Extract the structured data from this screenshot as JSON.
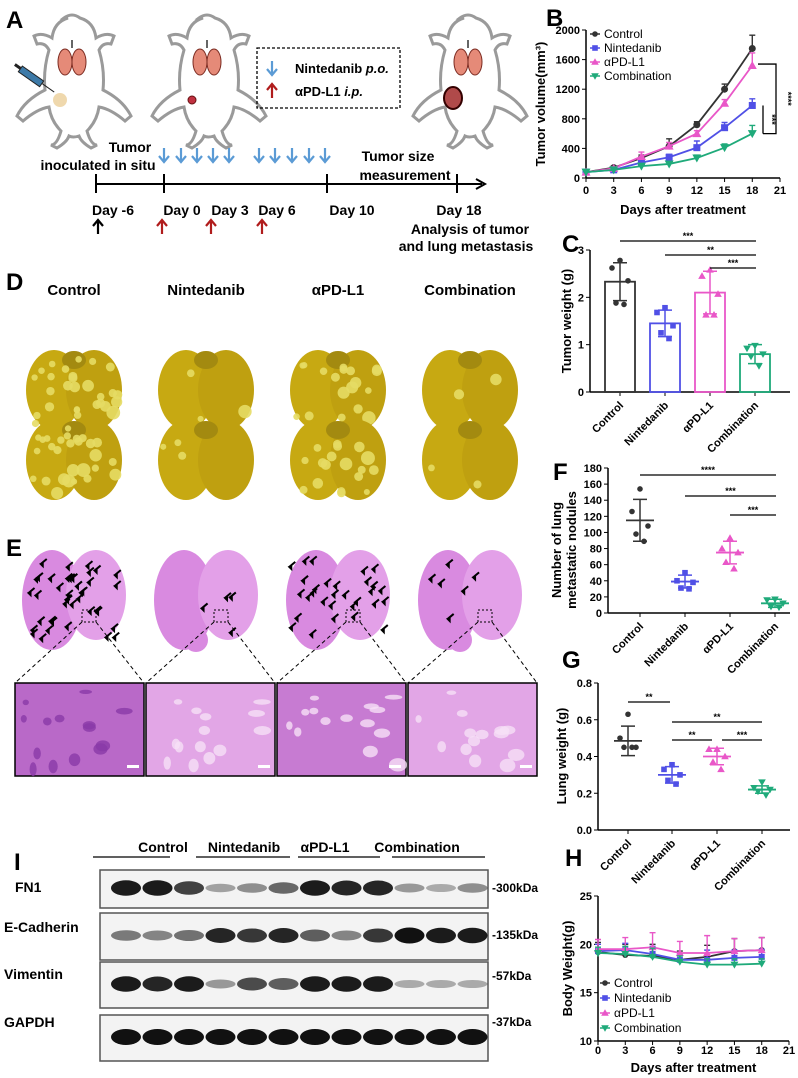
{
  "panel_labels": {
    "A": "A",
    "B": "B",
    "C": "C",
    "D": "D",
    "E": "E",
    "F": "F",
    "G": "G",
    "H": "H",
    "I": "I"
  },
  "groups": [
    "Control",
    "Nintedanib",
    "αPD-L1",
    "Combination"
  ],
  "colors": {
    "Control": "#333333",
    "Nintedanib": "#5050e6",
    "αPD-L1": "#e957c8",
    "Combination": "#1faa7a",
    "blue_arrow": "#5b9bd5",
    "red_arrow": "#b01c1c"
  },
  "schematic": {
    "legend": {
      "nintedanib": "Nintedanib",
      "nintedanib_route": "p.o.",
      "apdl1": "αPD-L1",
      "apdl1_route": "i.p."
    },
    "inoculation_line1": "Tumor",
    "inoculation_line2": "inoculated in situ",
    "measurement_line1": "Tumor size",
    "measurement_line2": "measurement",
    "days": [
      "Day -6",
      "Day 0",
      "Day 3",
      "Day 6",
      "Day 10",
      "Day 18"
    ],
    "analysis_line1": "Analysis of tumor",
    "analysis_line2": "and lung metastasis"
  },
  "photos": {
    "labels": [
      "Control",
      "Nintedanib",
      "αPD-L1",
      "Combination"
    ]
  },
  "western": {
    "groups": [
      "Control",
      "Nintedanib",
      "αPD-L1",
      "Combination"
    ],
    "rows": [
      {
        "protein": "FN1",
        "size": "-300kDa"
      },
      {
        "protein": "E-Cadherin",
        "size": "-135kDa"
      },
      {
        "protein": "Vimentin",
        "size": "-57kDa"
      },
      {
        "protein": "GAPDH",
        "size": "-37kDa"
      }
    ]
  },
  "chart_data": [
    {
      "id": "B",
      "type": "line",
      "xlabel": "Days after treatment",
      "ylabel": "Tumor volume(mm³)",
      "xlim": [
        0,
        21
      ],
      "ylim": [
        0,
        2000
      ],
      "xticks": [
        0,
        3,
        6,
        9,
        12,
        15,
        18,
        21
      ],
      "yticks": [
        0,
        400,
        800,
        1200,
        1600,
        2000
      ],
      "x": [
        0,
        3,
        6,
        9,
        12,
        15,
        18
      ],
      "legend": "top-left",
      "series": [
        {
          "name": "Control",
          "values": [
            80,
            140,
            270,
            430,
            720,
            1200,
            1750
          ],
          "err": [
            20,
            20,
            40,
            100,
            40,
            70,
            180
          ],
          "marker": "circle"
        },
        {
          "name": "Nintedanib",
          "values": [
            80,
            110,
            210,
            280,
            410,
            680,
            980
          ],
          "err": [
            20,
            20,
            30,
            40,
            90,
            70,
            90
          ],
          "marker": "square"
        },
        {
          "name": "αPD-L1",
          "values": [
            80,
            130,
            290,
            430,
            600,
            1010,
            1520
          ],
          "err": [
            20,
            20,
            60,
            50,
            40,
            50,
            170
          ],
          "marker": "triangle-up"
        },
        {
          "name": "Combination",
          "values": [
            80,
            110,
            160,
            190,
            270,
            410,
            600
          ],
          "err": [
            20,
            20,
            20,
            30,
            40,
            50,
            110
          ],
          "marker": "triangle-down"
        }
      ],
      "significance": [
        {
          "label": "****"
        },
        {
          "label": "***"
        }
      ]
    },
    {
      "id": "C",
      "type": "bar",
      "ylabel": "Tumor weight (g)",
      "ylim": [
        0,
        3
      ],
      "yticks": [
        0,
        1,
        2,
        3
      ],
      "categories": [
        "Control",
        "Nintedanib",
        "αPD-L1",
        "Combination"
      ],
      "values": [
        2.33,
        1.45,
        2.1,
        0.8
      ],
      "sd": [
        0.4,
        0.28,
        0.45,
        0.2
      ],
      "points": [
        [
          2.78,
          2.62,
          2.35,
          1.88,
          1.85
        ],
        [
          1.78,
          1.68,
          1.4,
          1.25,
          1.13
        ],
        [
          2.58,
          2.45,
          2.07,
          1.63,
          1.63
        ],
        [
          0.98,
          0.92,
          0.8,
          0.75,
          0.55
        ]
      ],
      "significance": [
        {
          "from": "Control",
          "to": "Combination",
          "label": "***"
        },
        {
          "from": "Nintedanib",
          "to": "Combination",
          "label": "**"
        },
        {
          "from": "αPD-L1",
          "to": "Combination",
          "label": "***"
        }
      ]
    },
    {
      "id": "F",
      "type": "scatter",
      "ylabel_line1": "Number of lung",
      "ylabel_line2": "metastatic nodules",
      "ylim": [
        0,
        180
      ],
      "yticks": [
        0,
        20,
        40,
        60,
        80,
        100,
        120,
        140,
        160,
        180
      ],
      "categories": [
        "Control",
        "Nintedanib",
        "αPD-L1",
        "Combination"
      ],
      "values": [
        115,
        39,
        75,
        12
      ],
      "sd": [
        26,
        8,
        14,
        5
      ],
      "points": [
        [
          154,
          126,
          108,
          98,
          89
        ],
        [
          50,
          40,
          38,
          31,
          30
        ],
        [
          93,
          80,
          75,
          63,
          55
        ],
        [
          17,
          16,
          12,
          8,
          7
        ]
      ],
      "significance": [
        {
          "from": "Control",
          "to": "Combination",
          "label": "****"
        },
        {
          "from": "Nintedanib",
          "to": "Combination",
          "label": "***"
        },
        {
          "from": "αPD-L1",
          "to": "Combination",
          "label": "***"
        }
      ]
    },
    {
      "id": "G",
      "type": "scatter",
      "ylabel": "Lung weight (g)",
      "ylim": [
        0,
        0.8
      ],
      "yticks": [
        "0.0",
        "0.2",
        "0.4",
        "0.6",
        "0.8"
      ],
      "categories": [
        "Control",
        "Nintedanib",
        "αPD-L1",
        "Combination"
      ],
      "values": [
        0.485,
        0.3,
        0.4,
        0.22
      ],
      "sd": [
        0.08,
        0.045,
        0.045,
        0.02
      ],
      "points": [
        [
          0.63,
          0.5,
          0.45,
          0.45,
          0.45
        ],
        [
          0.355,
          0.33,
          0.3,
          0.27,
          0.25
        ],
        [
          0.44,
          0.44,
          0.4,
          0.37,
          0.33
        ],
        [
          0.26,
          0.23,
          0.22,
          0.21,
          0.19
        ]
      ],
      "significance": [
        {
          "from": "Control",
          "to": "Nintedanib",
          "label": "**"
        },
        {
          "from": "Nintedanib",
          "to": "Combination",
          "label": "**"
        },
        {
          "from": "Nintedanib",
          "to": "αPD-L1",
          "label": "**"
        },
        {
          "from": "αPD-L1",
          "to": "Combination",
          "label": "***"
        }
      ]
    },
    {
      "id": "H",
      "type": "line",
      "xlabel": "Days after treatment",
      "ylabel": "Body Weight(g)",
      "xlim": [
        0,
        21
      ],
      "ylim": [
        10,
        25
      ],
      "xticks": [
        0,
        3,
        6,
        9,
        12,
        15,
        18,
        21
      ],
      "yticks": [
        10,
        15,
        20,
        25
      ],
      "x": [
        0,
        3,
        6,
        9,
        12,
        15,
        18
      ],
      "legend": "bottom-left",
      "series": [
        {
          "name": "Control",
          "values": [
            19.2,
            18.9,
            18.8,
            18.4,
            18.7,
            19.3,
            19.4
          ],
          "err": [
            1.0,
            1.1,
            1.2,
            0.9,
            1.2,
            1.3,
            1.3
          ]
        },
        {
          "name": "Nintedanib",
          "values": [
            19.3,
            19.4,
            19.0,
            18.4,
            18.4,
            18.6,
            18.7
          ],
          "err": [
            0.7,
            0.7,
            0.8,
            0.6,
            1.0,
            0.8,
            0.8
          ]
        },
        {
          "name": "αPD-L1",
          "values": [
            19.5,
            19.5,
            19.7,
            19.1,
            19.1,
            19.3,
            19.4
          ],
          "err": [
            1.0,
            1.2,
            1.5,
            1.2,
            1.8,
            1.3,
            1.3
          ]
        },
        {
          "name": "Combination",
          "values": [
            19.1,
            19.0,
            18.7,
            18.2,
            17.9,
            17.9,
            18.0
          ],
          "err": [
            0.6,
            0.8,
            0.9,
            0.6,
            0.6,
            0.6,
            0.5
          ]
        }
      ]
    }
  ]
}
